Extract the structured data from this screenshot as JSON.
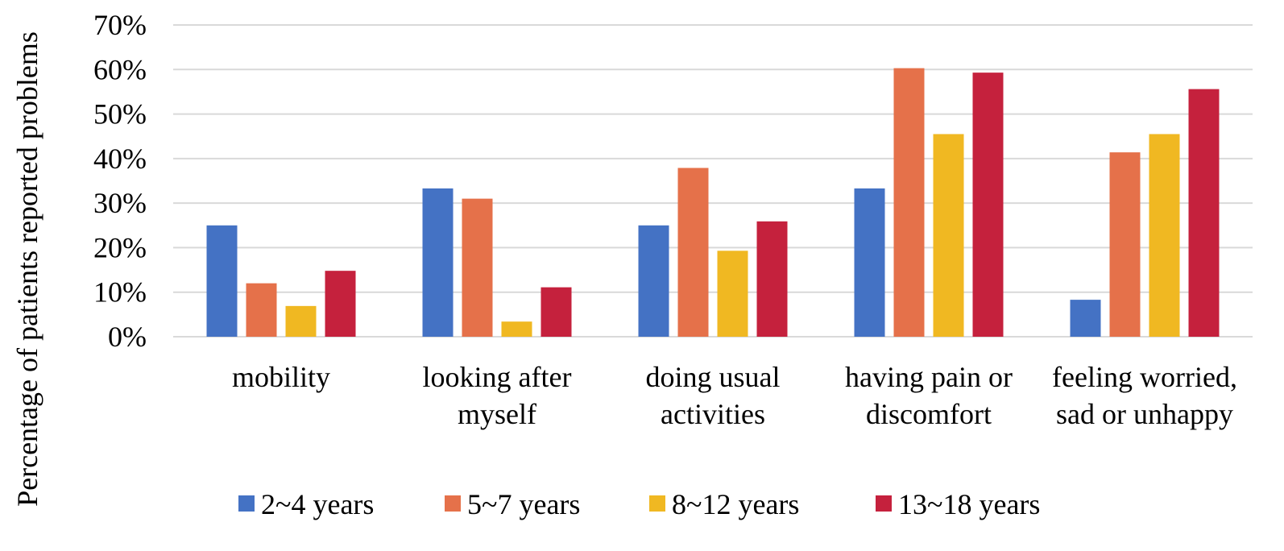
{
  "chart_data": {
    "type": "bar",
    "title": "",
    "xlabel": "",
    "ylabel": "Percentage of patients reported problems",
    "ylim": [
      0,
      70
    ],
    "yticks": [
      0,
      10,
      20,
      30,
      40,
      50,
      60,
      70
    ],
    "ytick_labels": [
      "0%",
      "10%",
      "20%",
      "30%",
      "40%",
      "50%",
      "60%",
      "70%"
    ],
    "grid": true,
    "legend_position": "bottom",
    "categories": [
      [
        "mobility"
      ],
      [
        "looking after",
        "myself"
      ],
      [
        "doing usual",
        "activities"
      ],
      [
        "having pain or",
        "discomfort"
      ],
      [
        "feeling worried,",
        "sad or unhappy"
      ]
    ],
    "series": [
      {
        "name": "2~4 years",
        "color": "#4472c4",
        "values": [
          25,
          33.3,
          25,
          33.3,
          8.3
        ]
      },
      {
        "name": "5~7 years",
        "color": "#e5714a",
        "values": [
          12,
          31,
          37.9,
          60.3,
          41.4
        ]
      },
      {
        "name": "8~12 years",
        "color": "#f0b822",
        "values": [
          6.9,
          3.4,
          19.3,
          45.5,
          45.5
        ]
      },
      {
        "name": "13~18 years",
        "color": "#c5213d",
        "values": [
          14.8,
          11.1,
          25.9,
          59.3,
          55.6
        ]
      }
    ]
  }
}
